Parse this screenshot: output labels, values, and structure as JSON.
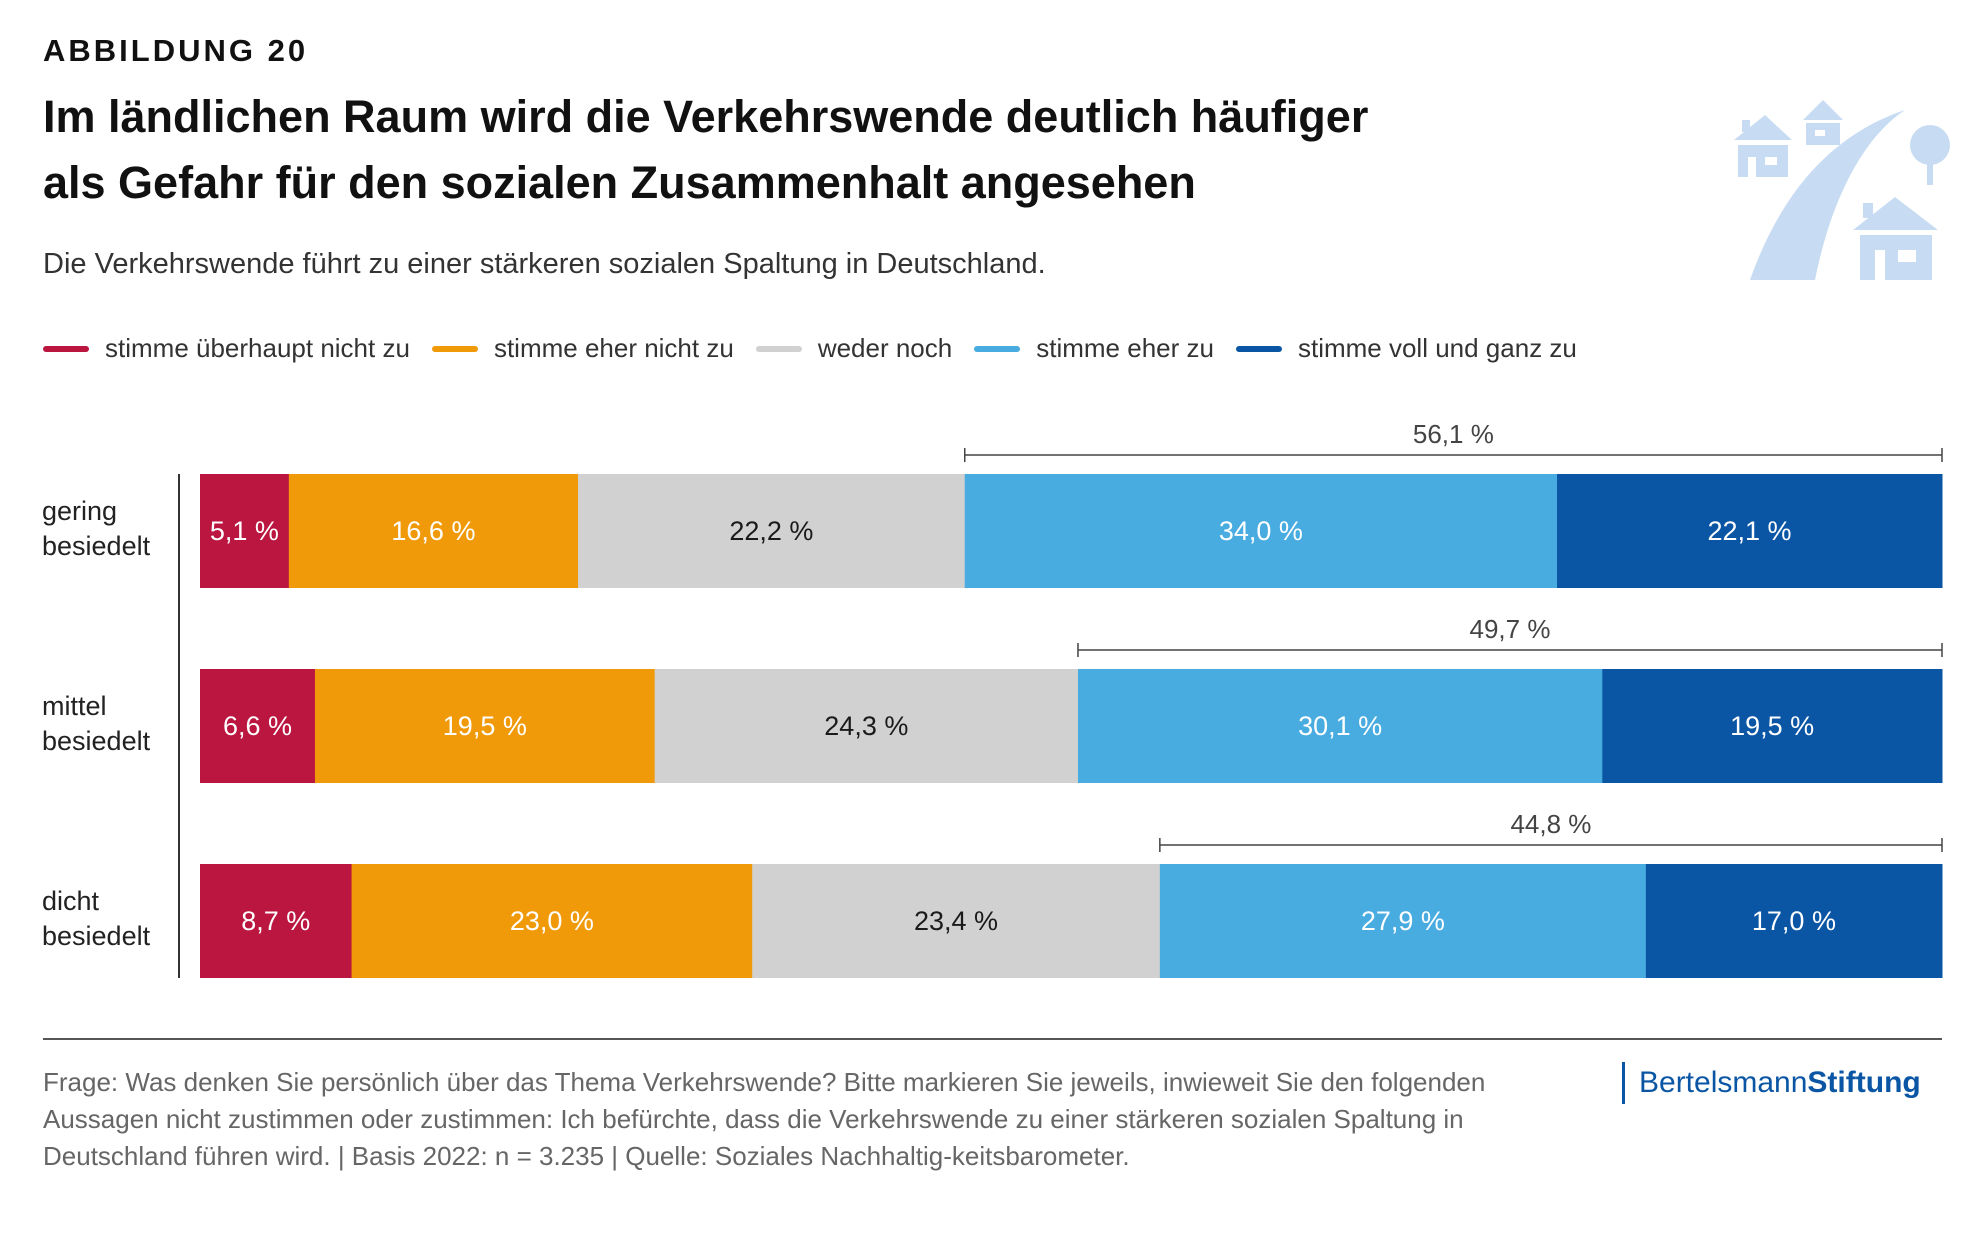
{
  "figure_label": "ABBILDUNG 20",
  "title_lines": [
    "Im ländlichen Raum wird die Verkehrswende deutlich häufiger",
    "als Gefahr für den sozialen Zusammenhalt angesehen"
  ],
  "subtitle": "Die Verkehrswende führt zu einer stärkeren sozialen Spaltung in Deutschland.",
  "footnote": "Frage: Was denken Sie persönlich über das Thema Verkehrswende? Bitte markieren Sie jeweils, inwieweit Sie den folgenden Aussagen nicht zustimmen oder zustimmen: Ich befürchte, dass die Verkehrswende zu einer stärkeren sozialen Spaltung in Deutschland führen wird. | Basis 2022: n = 3.235 | Quelle: Soziales Nachhaltig-keitsbarometer.",
  "logo": {
    "part1": "Bertelsmann",
    "part2": "Stiftung",
    "color": "#0b56a4"
  },
  "icon": "village-road-houses-tree-icon",
  "chart_data": {
    "type": "bar",
    "orientation": "horizontal-stacked-100",
    "categories": [
      [
        "gering",
        "besiedelt"
      ],
      [
        "mittel",
        "besiedelt"
      ],
      [
        "dicht",
        "besiedelt"
      ]
    ],
    "series": [
      {
        "name": "stimme überhaupt nicht zu",
        "color": "#ba1640",
        "text_color": "#ffffff",
        "values": [
          5.1,
          6.6,
          8.7
        ],
        "labels": [
          "5,1 %",
          "6,6 %",
          "8,7 %"
        ]
      },
      {
        "name": "stimme eher nicht zu",
        "color": "#f09a0a",
        "text_color": "#ffffff",
        "values": [
          16.6,
          19.5,
          23.0
        ],
        "labels": [
          "16,6 %",
          "19,5 %",
          "23,0 %"
        ]
      },
      {
        "name": "weder noch",
        "color": "#d0d1d0",
        "text_color": "#1a1a1a",
        "values": [
          22.2,
          24.3,
          23.4
        ],
        "labels": [
          "22,2 %",
          "24,3 %",
          "23,4 %"
        ]
      },
      {
        "name": "stimme eher zu",
        "color": "#48ace0",
        "text_color": "#ffffff",
        "values": [
          34.0,
          30.1,
          27.9
        ],
        "labels": [
          "34,0 %",
          "30,1 %",
          "27,9 %"
        ]
      },
      {
        "name": "stimme voll und ganz zu",
        "color": "#0b56a4",
        "text_color": "#ffffff",
        "values": [
          22.1,
          19.5,
          17.0
        ],
        "labels": [
          "22,1 %",
          "19,5 %",
          "17,0 %"
        ]
      }
    ],
    "agreement_totals": [
      "56,1 %",
      "49,7 %",
      "44,8 %"
    ],
    "xlim": [
      0,
      100
    ],
    "legend_position": "top",
    "grid": false
  }
}
